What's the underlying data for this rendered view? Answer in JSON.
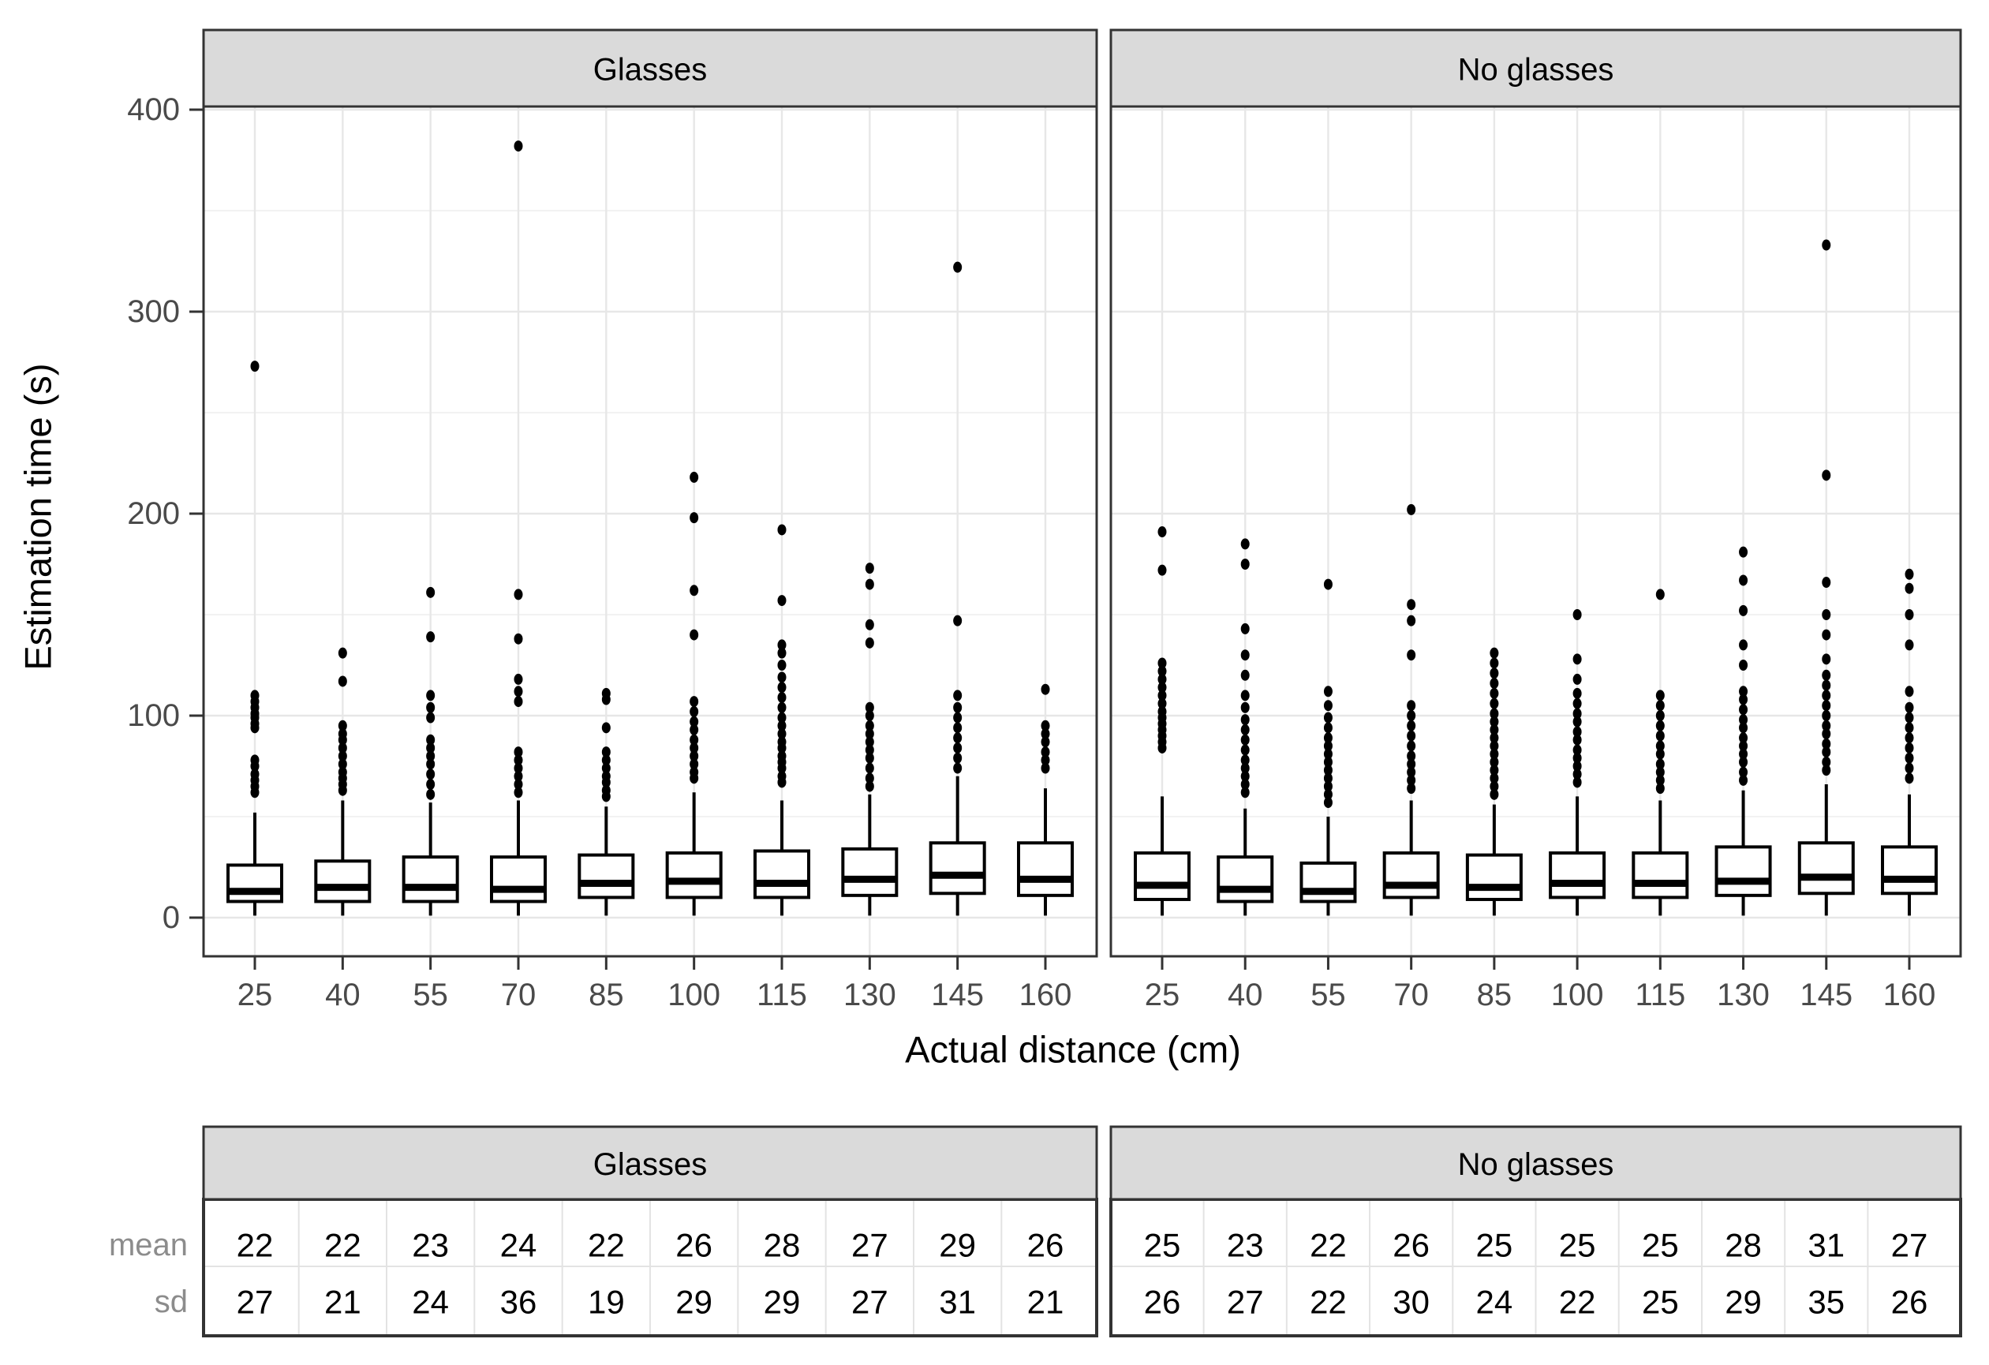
{
  "figure": {
    "y_axis_title": "Estimation time (s)",
    "x_axis_title": "Actual distance (cm)",
    "category_labels": [
      "25",
      "40",
      "55",
      "70",
      "85",
      "100",
      "115",
      "130",
      "145",
      "160"
    ],
    "y_tick_labels": [
      "0",
      "100",
      "200",
      "300",
      "400"
    ]
  },
  "chart_data": {
    "type": "boxplot-faceted",
    "title": "",
    "xlabel": "Actual distance (cm)",
    "ylabel": "Estimation time (s)",
    "ylim": [
      0,
      400
    ],
    "y_major_ticks": [
      0,
      100,
      200,
      300,
      400
    ],
    "y_minor_gridlines": [
      50,
      150,
      250,
      350
    ],
    "grid": "on",
    "categories": [
      25,
      40,
      55,
      70,
      85,
      100,
      115,
      130,
      145,
      160
    ],
    "facets": [
      {
        "name": "Glasses",
        "boxes": [
          {
            "q1": 8,
            "median": 13,
            "q3": 26,
            "whisker_low": 1,
            "whisker_high": 52,
            "outliers": [
              62,
              65,
              68,
              71,
              75,
              78,
              94,
              96,
              99,
              101,
              104,
              107,
              110,
              273
            ]
          },
          {
            "q1": 8,
            "median": 15,
            "q3": 28,
            "whisker_low": 1,
            "whisker_high": 58,
            "outliers": [
              63,
              66,
              69,
              72,
              76,
              80,
              84,
              88,
              91,
              95,
              117,
              131
            ]
          },
          {
            "q1": 8,
            "median": 15,
            "q3": 30,
            "whisker_low": 1,
            "whisker_high": 57,
            "outliers": [
              61,
              66,
              71,
              76,
              80,
              84,
              88,
              99,
              104,
              110,
              139,
              161
            ]
          },
          {
            "q1": 8,
            "median": 14,
            "q3": 30,
            "whisker_low": 1,
            "whisker_high": 58,
            "outliers": [
              62,
              66,
              70,
              74,
              78,
              82,
              107,
              112,
              118,
              138,
              160,
              382
            ]
          },
          {
            "q1": 10,
            "median": 17,
            "q3": 31,
            "whisker_low": 1,
            "whisker_high": 55,
            "outliers": [
              60,
              63,
              67,
              70,
              74,
              78,
              82,
              94,
              108,
              111
            ]
          },
          {
            "q1": 10,
            "median": 18,
            "q3": 32,
            "whisker_low": 1,
            "whisker_high": 62,
            "outliers": [
              69,
              72,
              76,
              80,
              84,
              88,
              93,
              97,
              102,
              107,
              140,
              162,
              198,
              218
            ]
          },
          {
            "q1": 10,
            "median": 17,
            "q3": 33,
            "whisker_low": 1,
            "whisker_high": 58,
            "outliers": [
              67,
              70,
              74,
              77,
              80,
              84,
              87,
              91,
              95,
              99,
              104,
              109,
              114,
              119,
              125,
              131,
              135,
              157,
              192
            ]
          },
          {
            "q1": 11,
            "median": 19,
            "q3": 34,
            "whisker_low": 1,
            "whisker_high": 61,
            "outliers": [
              65,
              69,
              74,
              79,
              83,
              87,
              91,
              95,
              100,
              104,
              136,
              145,
              165,
              173
            ]
          },
          {
            "q1": 12,
            "median": 21,
            "q3": 37,
            "whisker_low": 1,
            "whisker_high": 70,
            "outliers": [
              74,
              79,
              84,
              89,
              94,
              99,
              104,
              110,
              147,
              322
            ]
          },
          {
            "q1": 11,
            "median": 19,
            "q3": 37,
            "whisker_low": 1,
            "whisker_high": 64,
            "outliers": [
              74,
              78,
              82,
              87,
              91,
              95,
              113
            ]
          }
        ]
      },
      {
        "name": "No glasses",
        "boxes": [
          {
            "q1": 9,
            "median": 16,
            "q3": 32,
            "whisker_low": 1,
            "whisker_high": 60,
            "outliers": [
              84,
              87,
              90,
              93,
              96,
              99,
              102,
              106,
              110,
              114,
              118,
              122,
              126,
              172,
              191
            ]
          },
          {
            "q1": 8,
            "median": 14,
            "q3": 30,
            "whisker_low": 1,
            "whisker_high": 54,
            "outliers": [
              62,
              66,
              70,
              74,
              78,
              83,
              88,
              93,
              98,
              104,
              110,
              120,
              130,
              143,
              175,
              185
            ]
          },
          {
            "q1": 8,
            "median": 13,
            "q3": 27,
            "whisker_low": 1,
            "whisker_high": 50,
            "outliers": [
              57,
              61,
              65,
              69,
              73,
              77,
              81,
              85,
              89,
              94,
              99,
              105,
              112,
              165
            ]
          },
          {
            "q1": 10,
            "median": 16,
            "q3": 32,
            "whisker_low": 1,
            "whisker_high": 58,
            "outliers": [
              64,
              68,
              72,
              76,
              80,
              85,
              90,
              95,
              100,
              105,
              130,
              147,
              155,
              202
            ]
          },
          {
            "q1": 9,
            "median": 15,
            "q3": 31,
            "whisker_low": 1,
            "whisker_high": 56,
            "outliers": [
              61,
              65,
              69,
              73,
              77,
              81,
              85,
              89,
              93,
              97,
              101,
              106,
              111,
              116,
              121,
              126,
              131
            ]
          },
          {
            "q1": 10,
            "median": 17,
            "q3": 32,
            "whisker_low": 1,
            "whisker_high": 60,
            "outliers": [
              67,
              71,
              75,
              79,
              83,
              88,
              92,
              97,
              101,
              106,
              111,
              118,
              128,
              150
            ]
          },
          {
            "q1": 10,
            "median": 17,
            "q3": 32,
            "whisker_low": 1,
            "whisker_high": 58,
            "outliers": [
              64,
              68,
              72,
              76,
              81,
              85,
              90,
              95,
              100,
              105,
              110,
              160
            ]
          },
          {
            "q1": 11,
            "median": 18,
            "q3": 35,
            "whisker_low": 1,
            "whisker_high": 63,
            "outliers": [
              68,
              72,
              77,
              81,
              85,
              89,
              94,
              98,
              103,
              108,
              112,
              125,
              135,
              152,
              167,
              181
            ]
          },
          {
            "q1": 12,
            "median": 20,
            "q3": 37,
            "whisker_low": 1,
            "whisker_high": 66,
            "outliers": [
              73,
              77,
              82,
              86,
              91,
              95,
              100,
              105,
              110,
              115,
              120,
              128,
              140,
              150,
              166,
              219,
              333
            ]
          },
          {
            "q1": 12,
            "median": 19,
            "q3": 35,
            "whisker_low": 1,
            "whisker_high": 61,
            "outliers": [
              69,
              74,
              79,
              84,
              89,
              94,
              99,
              104,
              112,
              135,
              150,
              163,
              170
            ]
          }
        ]
      }
    ]
  },
  "summary_table": {
    "row_labels": [
      "mean",
      "sd"
    ],
    "facets": [
      {
        "name": "Glasses",
        "mean": [
          22,
          22,
          23,
          24,
          22,
          26,
          28,
          27,
          29,
          26
        ],
        "sd": [
          27,
          21,
          24,
          36,
          19,
          29,
          29,
          27,
          31,
          21
        ]
      },
      {
        "name": "No glasses",
        "mean": [
          25,
          23,
          22,
          26,
          25,
          25,
          25,
          28,
          31,
          27
        ],
        "sd": [
          26,
          27,
          22,
          30,
          24,
          22,
          25,
          29,
          35,
          26
        ]
      }
    ]
  },
  "colors": {
    "background": "#ffffff",
    "strip_fill": "#dadada",
    "panel_border": "#333333",
    "grid_major": "#e7e7e7",
    "grid_minor": "#f2f2f2",
    "tick_mark": "#333333",
    "tick_label": "#4a4a4a",
    "row_label": "#8c8c8c",
    "table_grid": "#e3e3e3",
    "data_color": "#000000"
  }
}
